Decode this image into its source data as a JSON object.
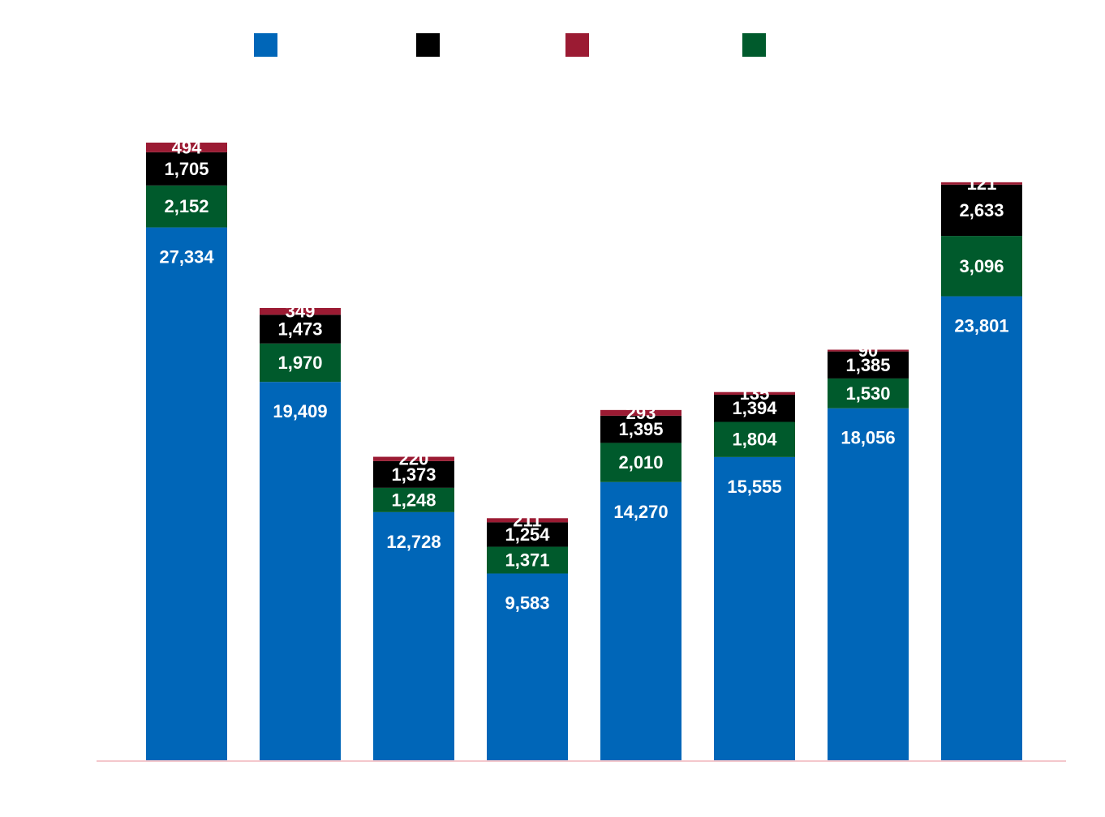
{
  "chart_data": {
    "type": "bar",
    "stacked": true,
    "title": "",
    "xlabel": "",
    "ylabel": "",
    "grid": false,
    "legend_position": "top",
    "categories": [
      "",
      "",
      "",
      "",
      "",
      "",
      "",
      ""
    ],
    "series": [
      {
        "name": "",
        "color": "#0066b8",
        "values": [
          27334,
          19409,
          12728,
          9583,
          14270,
          15555,
          18056,
          23801
        ],
        "labels": [
          "27,334",
          "19,409",
          "12,728",
          "9,583",
          "14,270",
          "15,555",
          "18,056",
          "23,801"
        ]
      },
      {
        "name": "",
        "color": "#005a2c",
        "values": [
          2152,
          1970,
          1248,
          1371,
          2010,
          1804,
          1530,
          3096
        ],
        "labels": [
          "2,152",
          "1,970",
          "1,248",
          "1,371",
          "2,010",
          "1,804",
          "1,530",
          "3,096"
        ]
      },
      {
        "name": "",
        "color": "#000000",
        "values": [
          1705,
          1473,
          1373,
          1254,
          1395,
          1394,
          1385,
          2633
        ],
        "labels": [
          "1,705",
          "1,473",
          "1,373",
          "1,254",
          "1,395",
          "1,394",
          "1,385",
          "2,633"
        ]
      },
      {
        "name": "",
        "color": "#9b1b33",
        "values": [
          494,
          349,
          220,
          211,
          293,
          135,
          90,
          121
        ],
        "labels": [
          "494",
          "349",
          "220",
          "211",
          "293",
          "135",
          "90",
          "121"
        ]
      }
    ],
    "legend_order": [
      0,
      2,
      3,
      1
    ],
    "ylim": [
      0,
      39000
    ],
    "axis_color": "#f4c7cc"
  }
}
